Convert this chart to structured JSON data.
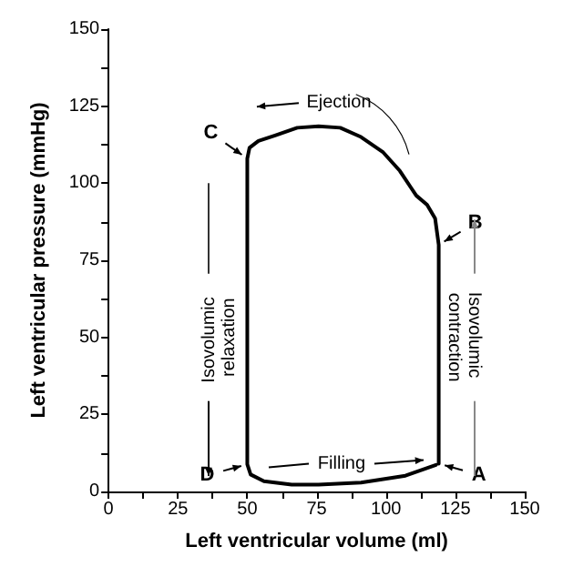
{
  "chart_data": {
    "type": "line",
    "xlabel": "Left ventricular volume (ml)",
    "ylabel": "Left ventricular pressure (mmHg)",
    "x": [
      119,
      119,
      117.7,
      114.8,
      110.9,
      108.9,
      105,
      99,
      91,
      83.5,
      75.7,
      68,
      60,
      54,
      50.8,
      50,
      50,
      51.2,
      56,
      66,
      75.7,
      91,
      107,
      118
    ],
    "series": [
      {
        "color": "#000000",
        "values": [
          9,
          80,
          88.6,
          93,
          96,
          98.7,
          104,
          110,
          115,
          118,
          118.5,
          118,
          115.5,
          113.7,
          111.5,
          108,
          8.8,
          5.5,
          3.3,
          2.2,
          2.2,
          2.9,
          5.1,
          8.6
        ]
      }
    ],
    "xlim": [
      0,
      150
    ],
    "ylim": [
      0,
      150
    ],
    "xticks": [
      0,
      25,
      50,
      75,
      100,
      125,
      150
    ],
    "yticks": [
      0,
      25,
      50,
      75,
      100,
      125,
      150
    ],
    "marker": "none",
    "line_style": "solid",
    "annotations": [
      "A",
      "B",
      "C",
      "D",
      "Ejection",
      "Filling",
      "Isovolumic relaxation",
      "Isovolumic contraction"
    ]
  }
}
